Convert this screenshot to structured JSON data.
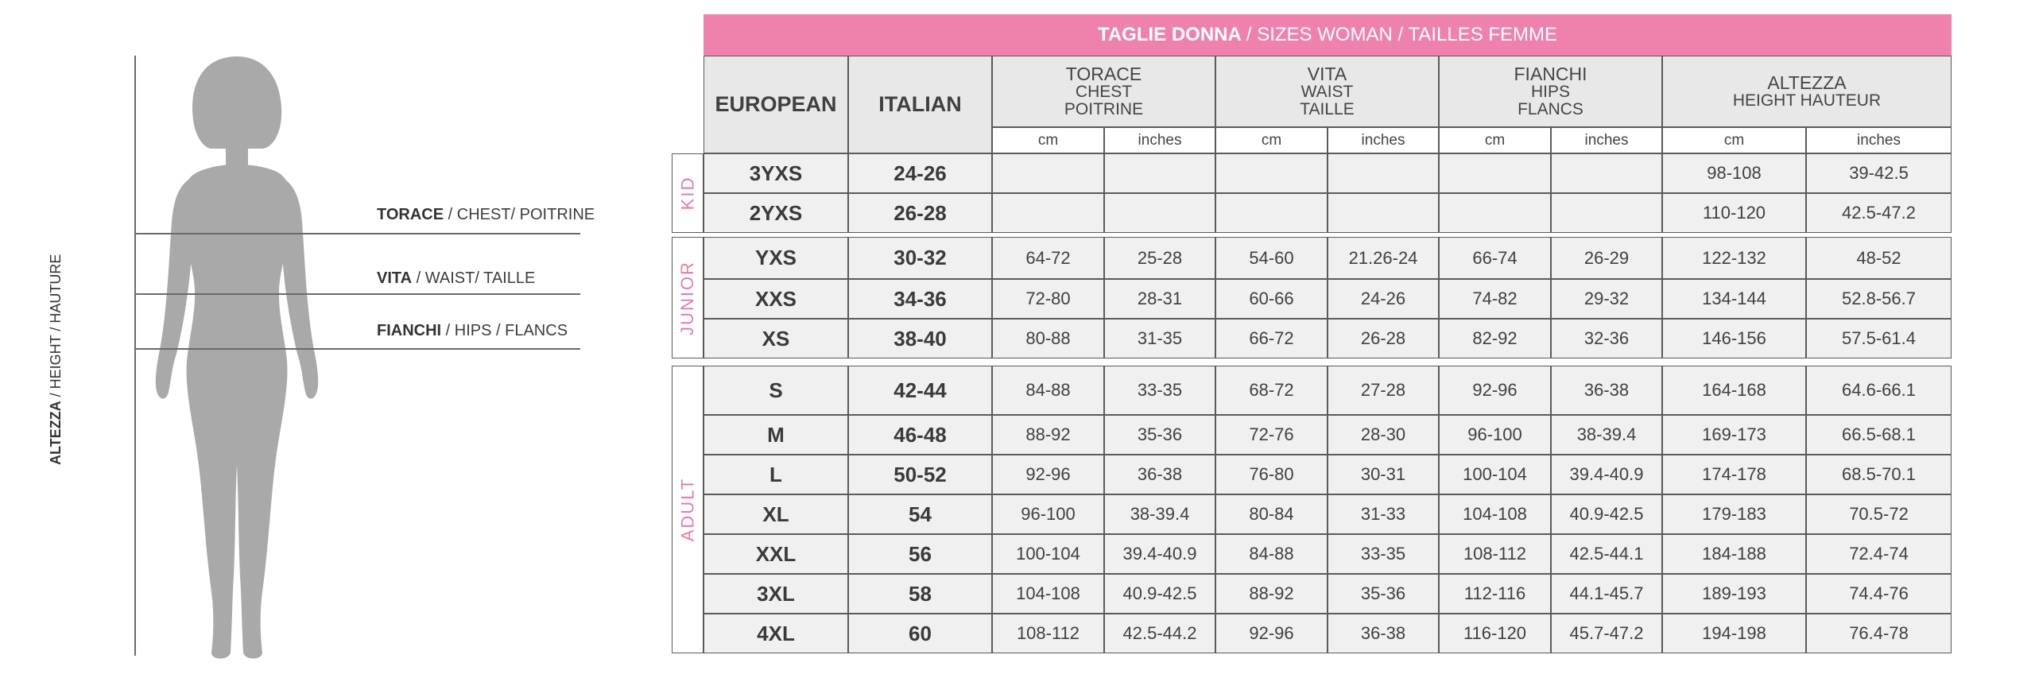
{
  "figure": {
    "height_label": {
      "strong": "ALTEZZA",
      "rest": " / HEIGHT / HAUTURE"
    },
    "chest_label": {
      "strong": "TORACE",
      "rest": " / CHEST/ POITRINE"
    },
    "waist_label": {
      "strong": "VITA",
      "rest": " / WAIST/ TAILLE"
    },
    "hips_label": {
      "strong": "FIANCHI",
      "rest": " / HIPS / FLANCS"
    },
    "silhouette_color": "#a9a9a9"
  },
  "table": {
    "title_strong": "TAGLIE DONNA",
    "title_rest": "/ SIZES WOMAN / TAILLES FEMME",
    "title_color": "#ee82ad",
    "group_color": "#e87aa9",
    "headers": {
      "european": "EUROPEAN",
      "italian": "ITALIAN",
      "chest": [
        "TORACE",
        "CHEST",
        "POITRINE"
      ],
      "waist": [
        "VITA",
        "WAIST",
        "TAILLE"
      ],
      "hips": [
        "FIANCHI",
        "HIPS",
        "FLANCS"
      ],
      "height": [
        "ALTEZZA",
        "HEIGHT HAUTEUR"
      ]
    },
    "units": [
      "cm",
      "inches",
      "cm",
      "inches",
      "cm",
      "inches",
      "cm",
      "inches"
    ],
    "groups": [
      {
        "label": "KID",
        "rows": [
          {
            "eu": "3YXS",
            "it": "24-26",
            "vals": [
              "",
              "",
              "",
              "",
              "",
              "",
              "98-108",
              "39-42.5"
            ]
          },
          {
            "eu": "2YXS",
            "it": "26-28",
            "vals": [
              "",
              "",
              "",
              "",
              "",
              "",
              "110-120",
              "42.5-47.2"
            ]
          }
        ]
      },
      {
        "label": "JUNIOR",
        "rows": [
          {
            "eu": "YXS",
            "it": "30-32",
            "vals": [
              "64-72",
              "25-28",
              "54-60",
              "21.26-24",
              "66-74",
              "26-29",
              "122-132",
              "48-52"
            ]
          },
          {
            "eu": "XXS",
            "it": "34-36",
            "vals": [
              "72-80",
              "28-31",
              "60-66",
              "24-26",
              "74-82",
              "29-32",
              "134-144",
              "52.8-56.7"
            ]
          },
          {
            "eu": "XS",
            "it": "38-40",
            "vals": [
              "80-88",
              "31-35",
              "66-72",
              "26-28",
              "82-92",
              "32-36",
              "146-156",
              "57.5-61.4"
            ]
          }
        ]
      },
      {
        "label": "ADULT",
        "rows": [
          {
            "eu": "S",
            "it": "42-44",
            "vals": [
              "84-88",
              "33-35",
              "68-72",
              "27-28",
              "92-96",
              "36-38",
              "164-168",
              "64.6-66.1"
            ]
          },
          {
            "eu": "M",
            "it": "46-48",
            "vals": [
              "88-92",
              "35-36",
              "72-76",
              "28-30",
              "96-100",
              "38-39.4",
              "169-173",
              "66.5-68.1"
            ]
          },
          {
            "eu": "L",
            "it": "50-52",
            "vals": [
              "92-96",
              "36-38",
              "76-80",
              "30-31",
              "100-104",
              "39.4-40.9",
              "174-178",
              "68.5-70.1"
            ]
          },
          {
            "eu": "XL",
            "it": "54",
            "vals": [
              "96-100",
              "38-39.4",
              "80-84",
              "31-33",
              "104-108",
              "40.9-42.5",
              "179-183",
              "70.5-72"
            ]
          },
          {
            "eu": "XXL",
            "it": "56",
            "vals": [
              "100-104",
              "39.4-40.9",
              "84-88",
              "33-35",
              "108-112",
              "42.5-44.1",
              "184-188",
              "72.4-74"
            ]
          },
          {
            "eu": "3XL",
            "it": "58",
            "vals": [
              "104-108",
              "40.9-42.5",
              "88-92",
              "35-36",
              "112-116",
              "44.1-45.7",
              "189-193",
              "74.4-76"
            ]
          },
          {
            "eu": "4XL",
            "it": "60",
            "vals": [
              "108-112",
              "42.5-44.2",
              "92-96",
              "36-38",
              "116-120",
              "45.7-47.2",
              "194-198",
              "76.4-78"
            ]
          }
        ]
      }
    ]
  }
}
